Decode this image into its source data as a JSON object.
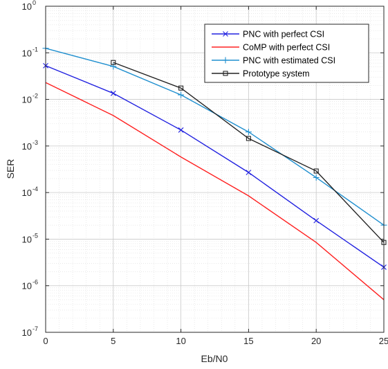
{
  "chart_data": {
    "type": "line",
    "xlabel": "Eb/N0",
    "ylabel": "SER",
    "xlim": [
      0,
      25
    ],
    "ylim": [
      1e-07,
      1
    ],
    "yscale": "log",
    "grid": true,
    "minor_grid": true,
    "legend_position": "top-right",
    "x_ticks": [
      0,
      5,
      10,
      15,
      20,
      25
    ],
    "y_ticks": [
      {
        "base": "10",
        "exp": "-7",
        "value": 1e-07
      },
      {
        "base": "10",
        "exp": "-6",
        "value": 1e-06
      },
      {
        "base": "10",
        "exp": "-5",
        "value": 1e-05
      },
      {
        "base": "10",
        "exp": "-4",
        "value": 0.0001
      },
      {
        "base": "10",
        "exp": "-3",
        "value": 0.001
      },
      {
        "base": "10",
        "exp": "-2",
        "value": 0.01
      },
      {
        "base": "10",
        "exp": "-1",
        "value": 0.1
      },
      {
        "base": "10",
        "exp": "0",
        "value": 1
      }
    ],
    "series": [
      {
        "name": "PNC with perfect CSI",
        "color": "#2020e0",
        "marker": "x",
        "x": [
          0,
          5,
          10,
          15,
          20,
          25
        ],
        "y": [
          0.053,
          0.0135,
          0.0022,
          0.00027,
          2.5e-05,
          2.5e-06
        ]
      },
      {
        "name": "CoMP with perfect CSI",
        "color": "#ff2020",
        "marker": "none",
        "x": [
          0,
          5,
          10,
          15,
          20,
          25
        ],
        "y": [
          0.023,
          0.0045,
          0.00058,
          8.5e-05,
          8.5e-06,
          5e-07
        ]
      },
      {
        "name": "PNC with estimated CSI",
        "color": "#1f8fcf",
        "marker": "+",
        "x": [
          0,
          5,
          10,
          15,
          20,
          25
        ],
        "y": [
          0.125,
          0.051,
          0.0125,
          0.002,
          0.00021,
          2e-05
        ]
      },
      {
        "name": "Prototype system",
        "color": "#222222",
        "marker": "square",
        "x": [
          5,
          10,
          15,
          20,
          25
        ],
        "y": [
          0.062,
          0.0175,
          0.00145,
          0.00029,
          8.5e-06
        ]
      }
    ]
  }
}
